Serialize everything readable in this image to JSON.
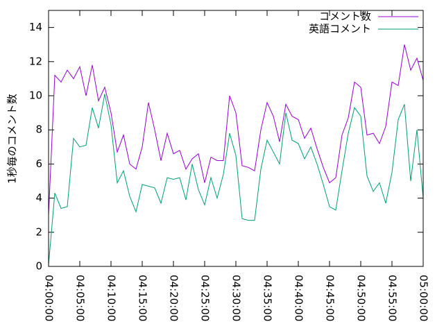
{
  "chart_data": {
    "type": "line",
    "ylabel": "1秒毎のコメント数",
    "x": [
      "04:00:00",
      "04:01:00",
      "04:02:00",
      "04:03:00",
      "04:04:00",
      "04:05:00",
      "04:06:00",
      "04:07:00",
      "04:08:00",
      "04:09:00",
      "04:10:00",
      "04:11:00",
      "04:12:00",
      "04:13:00",
      "04:14:00",
      "04:15:00",
      "04:16:00",
      "04:17:00",
      "04:18:00",
      "04:19:00",
      "04:20:00",
      "04:21:00",
      "04:22:00",
      "04:23:00",
      "04:24:00",
      "04:25:00",
      "04:26:00",
      "04:27:00",
      "04:28:00",
      "04:29:00",
      "04:30:00",
      "04:31:00",
      "04:32:00",
      "04:33:00",
      "04:34:00",
      "04:35:00",
      "04:36:00",
      "04:37:00",
      "04:38:00",
      "04:39:00",
      "04:40:00",
      "04:41:00",
      "04:42:00",
      "04:43:00",
      "04:44:00",
      "04:45:00",
      "04:46:00",
      "04:47:00",
      "04:48:00",
      "04:49:00",
      "04:50:00",
      "04:51:00",
      "04:52:00",
      "04:53:00",
      "04:54:00",
      "04:55:00",
      "04:56:00",
      "04:57:00",
      "04:58:00",
      "04:59:00",
      "05:00:00"
    ],
    "series": [
      {
        "name": "コメント数",
        "color": "#9400d3",
        "values": [
          3,
          11.2,
          10.8,
          11.5,
          11,
          11.7,
          10,
          11.8,
          9.7,
          10.5,
          9,
          6.7,
          7.7,
          6,
          5.7,
          7,
          9.6,
          8,
          6.2,
          7.8,
          6.6,
          6.8,
          5.7,
          6.3,
          6.6,
          4.9,
          6.4,
          6.2,
          6.2,
          10,
          9,
          5.9,
          5.8,
          5.6,
          8,
          9.6,
          8.8,
          7.3,
          9.5,
          8.8,
          8.6,
          7.5,
          8.1,
          6.9,
          5.8,
          4.9,
          5.2,
          7.7,
          8.7,
          10.8,
          10.5,
          7.7,
          7.8,
          7.2,
          8.2,
          10.8,
          10.6,
          13,
          11.5,
          12.2,
          10.9
        ]
      },
      {
        "name": "英語コメント",
        "color": "#009e73",
        "values": [
          0.1,
          4.3,
          3.4,
          3.5,
          7.5,
          7,
          7.1,
          9.3,
          8.1,
          10.1,
          8.3,
          4.9,
          5.6,
          4.1,
          3.2,
          4.8,
          4.7,
          4.6,
          3.7,
          5.2,
          5.1,
          5.2,
          3.9,
          6,
          4.5,
          3.6,
          5.2,
          4,
          5.4,
          7.8,
          6.5,
          2.8,
          2.7,
          2.7,
          5.7,
          7.4,
          6.7,
          6,
          9,
          7.4,
          7.2,
          6.3,
          7,
          6,
          4.8,
          3.5,
          3.3,
          5.6,
          7.8,
          9.3,
          8.8,
          5.3,
          4.4,
          4.9,
          3.7,
          5.5,
          8.6,
          9.5,
          5,
          8,
          4
        ]
      }
    ],
    "xlim": [
      "04:00:00",
      "05:00:00"
    ],
    "xticks": [
      "04:00:00",
      "04:05:00",
      "04:10:00",
      "04:15:00",
      "04:20:00",
      "04:25:00",
      "04:30:00",
      "04:35:00",
      "04:40:00",
      "04:45:00",
      "04:50:00",
      "04:55:00",
      "05:00:00"
    ],
    "ylim": [
      0,
      15
    ],
    "yticks": [
      0,
      2,
      4,
      6,
      8,
      10,
      12,
      14
    ],
    "grid": false,
    "legend": "top-right"
  }
}
